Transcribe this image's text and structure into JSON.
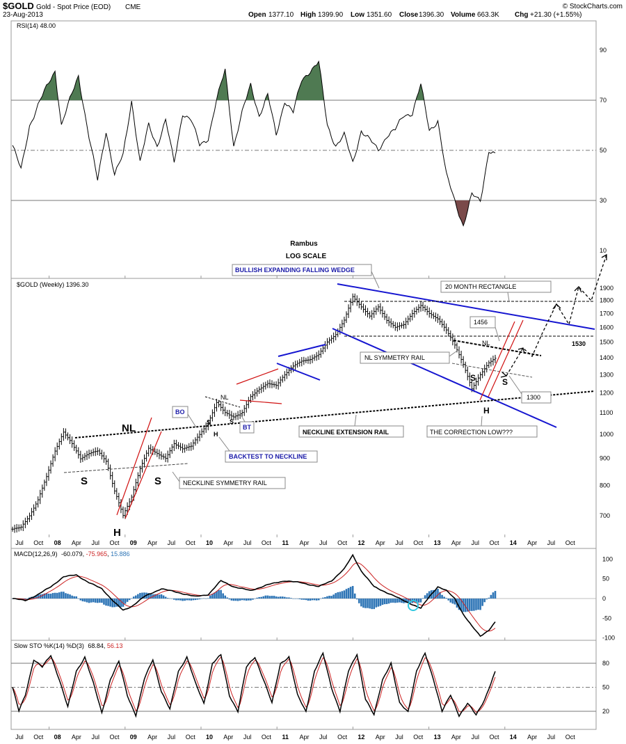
{
  "header": {
    "symbol": "$GOLD",
    "name": "Gold - Spot Price (EOD)",
    "exchange": "CME",
    "date": "23-Aug-2013",
    "open_label": "Open",
    "open": "1377.10",
    "high_label": "High",
    "high": "1399.90",
    "low_label": "Low",
    "low": "1351.60",
    "close_label": "Close",
    "close": "1396.30",
    "volume_label": "Volume",
    "volume": "663.3K",
    "chg_label": "Chg",
    "chg": "+21.30 (+1.55%)",
    "credit": "© StockCharts.com"
  },
  "titles": {
    "author": "Rambus",
    "scale": "LOG SCALE"
  },
  "chart_data": [
    {
      "type": "line",
      "panel": "rsi",
      "label": "RSI(14) 48.00",
      "ylim": [
        0,
        100
      ],
      "yticks": [
        10,
        30,
        50,
        70,
        90
      ],
      "reference_lines": [
        30,
        50,
        70
      ],
      "overbought_fill": "#4f7a52",
      "oversold_fill": "#7a4a4a",
      "anchors": [
        [
          0,
          52
        ],
        [
          4,
          42
        ],
        [
          8,
          60
        ],
        [
          12,
          68
        ],
        [
          16,
          75
        ],
        [
          20,
          82
        ],
        [
          23,
          60
        ],
        [
          27,
          70
        ],
        [
          31,
          80
        ],
        [
          36,
          55
        ],
        [
          40,
          38
        ],
        [
          44,
          58
        ],
        [
          48,
          40
        ],
        [
          52,
          48
        ],
        [
          56,
          70
        ],
        [
          60,
          45
        ],
        [
          64,
          60
        ],
        [
          68,
          52
        ],
        [
          72,
          62
        ],
        [
          76,
          45
        ],
        [
          80,
          65
        ],
        [
          84,
          62
        ],
        [
          88,
          52
        ],
        [
          92,
          55
        ],
        [
          96,
          70
        ],
        [
          100,
          82
        ],
        [
          104,
          52
        ],
        [
          108,
          65
        ],
        [
          112,
          76
        ],
        [
          116,
          64
        ],
        [
          120,
          72
        ],
        [
          124,
          56
        ],
        [
          128,
          70
        ],
        [
          132,
          65
        ],
        [
          136,
          78
        ],
        [
          140,
          82
        ],
        [
          144,
          85
        ],
        [
          148,
          60
        ],
        [
          152,
          52
        ],
        [
          156,
          56
        ],
        [
          160,
          45
        ],
        [
          164,
          58
        ],
        [
          168,
          54
        ],
        [
          172,
          50
        ],
        [
          176,
          56
        ],
        [
          180,
          58
        ],
        [
          184,
          64
        ],
        [
          188,
          65
        ],
        [
          192,
          76
        ],
        [
          196,
          58
        ],
        [
          200,
          62
        ],
        [
          204,
          40
        ],
        [
          208,
          30
        ],
        [
          212,
          20
        ],
        [
          216,
          32
        ],
        [
          220,
          30
        ],
        [
          224,
          50
        ],
        [
          227,
          48
        ]
      ],
      "x_tick_labels": [
        "Jul",
        "Oct",
        "08",
        "Apr",
        "Jul",
        "Oct",
        "09",
        "Apr",
        "Jul",
        "Oct",
        "10",
        "Apr",
        "Jul",
        "Oct",
        "11",
        "Apr",
        "Jul",
        "Oct",
        "12",
        "Apr",
        "Jul",
        "Oct",
        "13",
        "Apr",
        "Jul",
        "Oct",
        "14",
        "Apr",
        "Jul",
        "Oct"
      ]
    },
    {
      "type": "candlestick",
      "panel": "price",
      "label": "$GOLD (Weekly) 1396.30",
      "scale": "log",
      "ylim": [
        640,
        1960
      ],
      "yticks": [
        700,
        800,
        900,
        1000,
        1100,
        1200,
        1300,
        1400,
        1500,
        1600,
        1700,
        1800,
        1900
      ],
      "anchors": [
        [
          0,
          660
        ],
        [
          4,
          665
        ],
        [
          8,
          700
        ],
        [
          12,
          750
        ],
        [
          16,
          830
        ],
        [
          20,
          930
        ],
        [
          24,
          1010
        ],
        [
          28,
          960
        ],
        [
          32,
          900
        ],
        [
          36,
          920
        ],
        [
          40,
          930
        ],
        [
          44,
          890
        ],
        [
          48,
          780
        ],
        [
          52,
          700
        ],
        [
          56,
          760
        ],
        [
          60,
          860
        ],
        [
          64,
          940
        ],
        [
          68,
          920
        ],
        [
          72,
          900
        ],
        [
          76,
          960
        ],
        [
          80,
          940
        ],
        [
          84,
          950
        ],
        [
          88,
          1000
        ],
        [
          92,
          1050
        ],
        [
          96,
          1150
        ],
        [
          100,
          1100
        ],
        [
          104,
          1080
        ],
        [
          108,
          1100
        ],
        [
          112,
          1180
        ],
        [
          116,
          1220
        ],
        [
          120,
          1250
        ],
        [
          124,
          1240
        ],
        [
          128,
          1300
        ],
        [
          132,
          1350
        ],
        [
          136,
          1380
        ],
        [
          140,
          1390
        ],
        [
          144,
          1420
        ],
        [
          148,
          1500
        ],
        [
          152,
          1550
        ],
        [
          156,
          1650
        ],
        [
          160,
          1830
        ],
        [
          164,
          1750
        ],
        [
          168,
          1680
        ],
        [
          172,
          1750
        ],
        [
          176,
          1650
        ],
        [
          180,
          1600
        ],
        [
          184,
          1620
        ],
        [
          188,
          1700
        ],
        [
          192,
          1760
        ],
        [
          196,
          1700
        ],
        [
          200,
          1660
        ],
        [
          204,
          1580
        ],
        [
          208,
          1480
        ],
        [
          212,
          1360
        ],
        [
          216,
          1220
        ],
        [
          220,
          1300
        ],
        [
          224,
          1370
        ],
        [
          227,
          1396
        ]
      ],
      "annotations": [
        {
          "id": "wedge",
          "text": "BULLISH EXPANDING FALLING WEDGE"
        },
        {
          "id": "rect",
          "text": "20 MONTH RECTANGLE"
        },
        {
          "id": "v1456",
          "text": "1456"
        },
        {
          "id": "v1530",
          "text": "1530"
        },
        {
          "id": "v1300",
          "text": "1300"
        },
        {
          "id": "nl_sym",
          "text": "NL SYMMETRY RAIL"
        },
        {
          "id": "neck_ext",
          "text": "NECKLINE EXTENSION RAIL"
        },
        {
          "id": "corr_low",
          "text": "THE CORRECTION LOW???"
        },
        {
          "id": "bo",
          "text": "BO"
        },
        {
          "id": "bt",
          "text": "BT"
        },
        {
          "id": "backtest",
          "text": "BACKTEST TO NECKLINE"
        },
        {
          "id": "neck_sym",
          "text": "NECKLINE SYMMETRY RAIL"
        }
      ],
      "pattern_labels": {
        "s": "S",
        "h": "H",
        "nl": "NL"
      }
    },
    {
      "type": "line",
      "panel": "macd",
      "label_name": "MACD(12,26,9)",
      "label_values": [
        "-60.079",
        "-75.965",
        "15.886"
      ],
      "ylim": [
        -110,
        120
      ],
      "yticks": [
        -100,
        -50,
        0,
        50,
        100
      ],
      "series": [
        {
          "name": "MACD",
          "color": "#000000"
        },
        {
          "name": "Signal",
          "color": "#cc2222"
        },
        {
          "name": "Histogram",
          "color": "#2e75b6"
        }
      ],
      "anchors": [
        [
          0,
          0
        ],
        [
          6,
          -5
        ],
        [
          12,
          10
        ],
        [
          18,
          30
        ],
        [
          24,
          55
        ],
        [
          30,
          60
        ],
        [
          36,
          40
        ],
        [
          42,
          25
        ],
        [
          48,
          -10
        ],
        [
          52,
          -30
        ],
        [
          56,
          -20
        ],
        [
          62,
          5
        ],
        [
          70,
          25
        ],
        [
          78,
          15
        ],
        [
          86,
          5
        ],
        [
          92,
          10
        ],
        [
          98,
          45
        ],
        [
          104,
          30
        ],
        [
          112,
          20
        ],
        [
          120,
          35
        ],
        [
          128,
          45
        ],
        [
          136,
          40
        ],
        [
          144,
          30
        ],
        [
          150,
          45
        ],
        [
          156,
          75
        ],
        [
          160,
          110
        ],
        [
          164,
          70
        ],
        [
          170,
          30
        ],
        [
          176,
          15
        ],
        [
          182,
          0
        ],
        [
          188,
          -15
        ],
        [
          192,
          -25
        ],
        [
          196,
          5
        ],
        [
          200,
          30
        ],
        [
          204,
          20
        ],
        [
          208,
          0
        ],
        [
          212,
          -40
        ],
        [
          216,
          -70
        ],
        [
          220,
          -95
        ],
        [
          224,
          -80
        ],
        [
          227,
          -60
        ]
      ]
    },
    {
      "type": "line",
      "panel": "sto",
      "label_name": "Slow STO %K(14) %D(3)",
      "label_values": [
        "68.84",
        "56.13"
      ],
      "ylim": [
        0,
        100
      ],
      "yticks": [
        20,
        50,
        80
      ],
      "reference_lines": [
        20,
        50,
        80
      ],
      "series": [
        {
          "name": "%K",
          "color": "#000000"
        },
        {
          "name": "%D",
          "color": "#cc2222"
        }
      ],
      "anchors": [
        [
          0,
          50
        ],
        [
          3,
          20
        ],
        [
          6,
          40
        ],
        [
          10,
          85
        ],
        [
          14,
          75
        ],
        [
          18,
          90
        ],
        [
          22,
          60
        ],
        [
          26,
          25
        ],
        [
          30,
          70
        ],
        [
          34,
          88
        ],
        [
          38,
          55
        ],
        [
          42,
          18
        ],
        [
          46,
          60
        ],
        [
          50,
          82
        ],
        [
          54,
          40
        ],
        [
          58,
          15
        ],
        [
          62,
          60
        ],
        [
          66,
          85
        ],
        [
          70,
          45
        ],
        [
          74,
          22
        ],
        [
          78,
          70
        ],
        [
          82,
          88
        ],
        [
          86,
          55
        ],
        [
          90,
          30
        ],
        [
          94,
          80
        ],
        [
          98,
          90
        ],
        [
          102,
          40
        ],
        [
          106,
          20
        ],
        [
          110,
          75
        ],
        [
          114,
          88
        ],
        [
          118,
          60
        ],
        [
          122,
          30
        ],
        [
          126,
          80
        ],
        [
          130,
          88
        ],
        [
          134,
          40
        ],
        [
          138,
          20
        ],
        [
          142,
          70
        ],
        [
          146,
          92
        ],
        [
          150,
          50
        ],
        [
          154,
          20
        ],
        [
          158,
          70
        ],
        [
          162,
          92
        ],
        [
          166,
          35
        ],
        [
          170,
          15
        ],
        [
          174,
          60
        ],
        [
          178,
          80
        ],
        [
          182,
          30
        ],
        [
          186,
          20
        ],
        [
          190,
          70
        ],
        [
          194,
          92
        ],
        [
          198,
          60
        ],
        [
          202,
          20
        ],
        [
          206,
          40
        ],
        [
          210,
          15
        ],
        [
          214,
          30
        ],
        [
          218,
          15
        ],
        [
          222,
          35
        ],
        [
          227,
          69
        ]
      ]
    }
  ]
}
